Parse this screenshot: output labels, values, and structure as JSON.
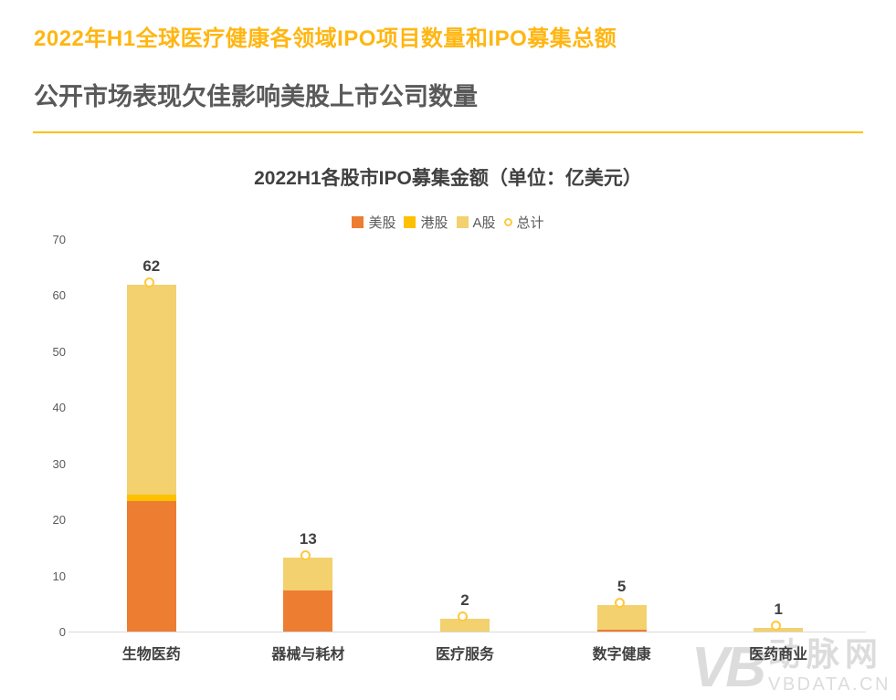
{
  "page": {
    "title": "2022年H1全球医疗健康各领域IPO项目数量和IPO募集总额",
    "subtitle": "公开市场表现欠佳影响美股上市公司数量",
    "title_color": "#FFB612",
    "separator_color": "#FFC000"
  },
  "watermark": {
    "logo": "VB",
    "name": "动脉网",
    "site": "VBDATA.CN"
  },
  "chart_data": {
    "type": "bar",
    "stacked": true,
    "title": "2022H1各股市IPO募集金额（单位：亿美元）",
    "categories": [
      "生物医药",
      "器械与耗材",
      "医疗服务",
      "数字健康",
      "医药商业"
    ],
    "series": [
      {
        "name": "美股",
        "color": "#ED7D31",
        "values": [
          23.2,
          7.3,
          0,
          0.3,
          0
        ]
      },
      {
        "name": "港股",
        "color": "#FFC000",
        "values": [
          1.2,
          0,
          0,
          0,
          0
        ]
      },
      {
        "name": "A股",
        "color": "#F2D16E",
        "values": [
          37.4,
          5.9,
          2.2,
          4.4,
          0.7
        ]
      }
    ],
    "total_series": {
      "name": "总计",
      "marker": "circle",
      "marker_color": "#FFC83D",
      "labels": [
        62,
        13,
        2,
        5,
        1
      ]
    },
    "ylabel": "",
    "xlabel": "",
    "ylim": [
      0,
      70
    ],
    "ytick_step": 10,
    "yticks": [
      0,
      10,
      20,
      30,
      40,
      50,
      60,
      70
    ],
    "grid": false,
    "legend_position": "top",
    "value_label_color": "#404040",
    "axis_text_color": "#595959",
    "baseline_color": "#D9D9D9"
  }
}
